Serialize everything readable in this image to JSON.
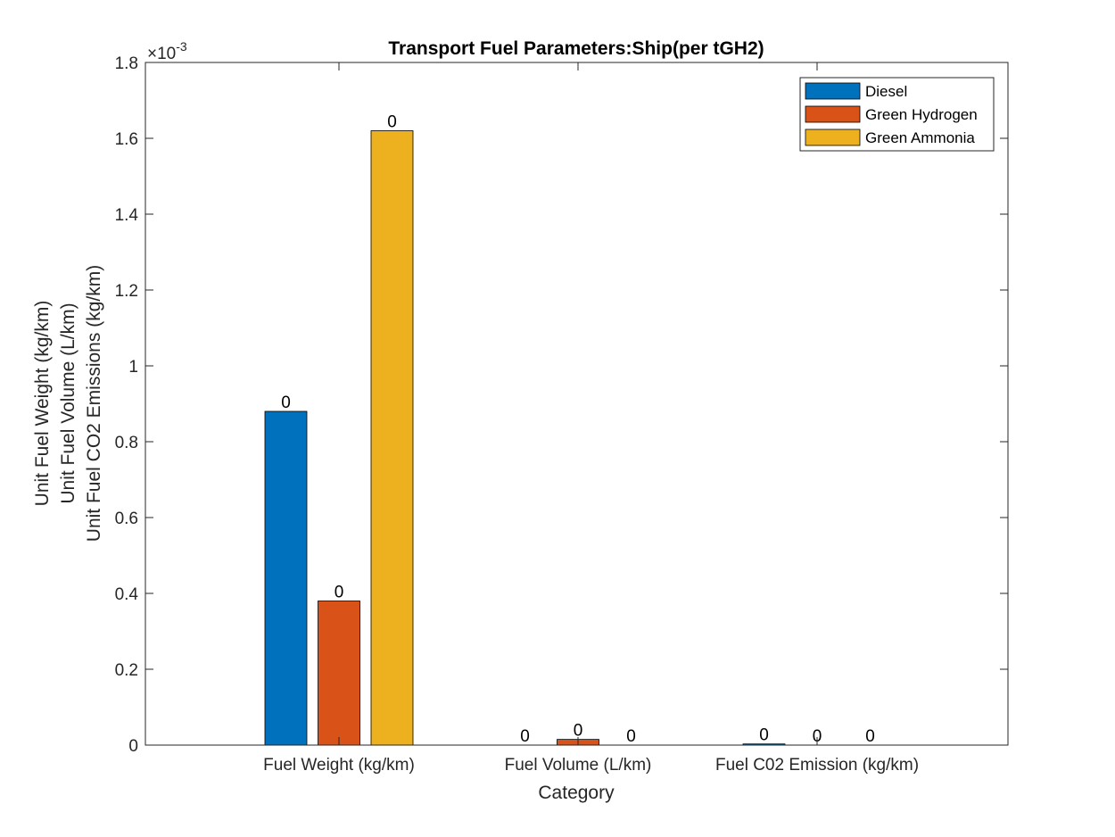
{
  "chart_data": {
    "type": "bar",
    "title": "Transport Fuel Parameters:Ship(per tGH2)",
    "xlabel": "Category",
    "ylabel_lines": [
      "Unit Fuel Weight (kg/km)",
      "Unit Fuel Volume (L/km)",
      "Unit Fuel CO2 Emissions (kg/km)"
    ],
    "exponent_base": "×10",
    "exponent_power": "-3",
    "categories": [
      "Fuel Weight (kg/km)",
      "Fuel Volume (L/km)",
      "Fuel C02 Emission (kg/km)"
    ],
    "series": [
      {
        "name": "Diesel",
        "color": "#0072BD",
        "values": [
          0.00088,
          0.0,
          3e-06
        ],
        "labels": [
          "0",
          "0",
          "0"
        ]
      },
      {
        "name": "Green Hydrogen",
        "color": "#D95319",
        "values": [
          0.00038,
          1.5e-05,
          0.0
        ],
        "labels": [
          "0",
          "0",
          "0"
        ]
      },
      {
        "name": "Green Ammonia",
        "color": "#EDB120",
        "values": [
          0.00162,
          0.0,
          0.0
        ],
        "labels": [
          "0",
          "0",
          "0"
        ]
      }
    ],
    "ylim": [
      0,
      0.0018
    ],
    "yticks": [
      0,
      0.0002,
      0.0004,
      0.0006,
      0.0008,
      0.001,
      0.0012,
      0.0014,
      0.0016,
      0.0018
    ],
    "ytick_labels": [
      "0",
      "0.2",
      "0.4",
      "0.6",
      "0.8",
      "1",
      "1.2",
      "1.4",
      "1.6",
      "1.8"
    ],
    "grid": false,
    "legend_position": "top-right"
  }
}
